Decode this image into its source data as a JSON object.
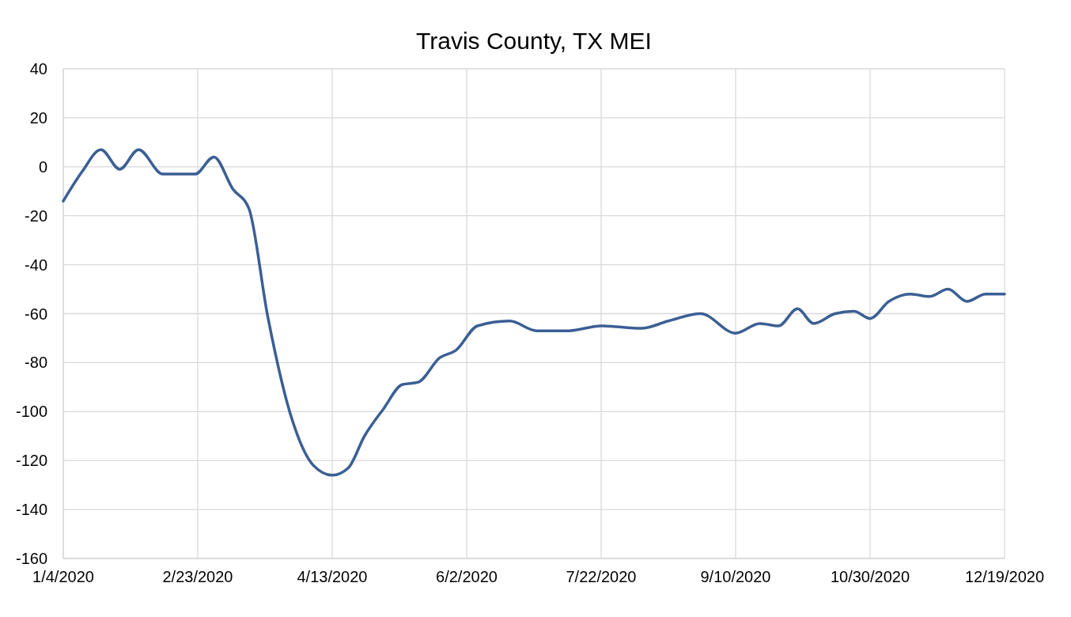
{
  "chart_data": {
    "type": "line",
    "title": "Travis County, TX MEI",
    "x": [
      "2020-01-04",
      "2020-01-11",
      "2020-01-18",
      "2020-01-25",
      "2020-02-01",
      "2020-02-10",
      "2020-02-16",
      "2020-02-22",
      "2020-02-29",
      "2020-03-07",
      "2020-03-13",
      "2020-03-20",
      "2020-03-29",
      "2020-04-06",
      "2020-04-13",
      "2020-04-19",
      "2020-04-25",
      "2020-05-02",
      "2020-05-09",
      "2020-05-15",
      "2020-05-23",
      "2020-05-29",
      "2020-06-06",
      "2020-06-18",
      "2020-06-28",
      "2020-07-10",
      "2020-07-22",
      "2020-08-06",
      "2020-08-16",
      "2020-08-28",
      "2020-09-10",
      "2020-09-19",
      "2020-09-26",
      "2020-10-03",
      "2020-10-09",
      "2020-10-17",
      "2020-10-24",
      "2020-10-30",
      "2020-11-06",
      "2020-11-14",
      "2020-11-21",
      "2020-11-28",
      "2020-12-05",
      "2020-12-12",
      "2020-12-19"
    ],
    "series": [
      {
        "color": "#3b5f94",
        "values": [
          -14,
          -2,
          7,
          -1,
          7,
          -3,
          -3,
          -3,
          4,
          -9,
          -17,
          -61,
          -103,
          -122,
          -126,
          -123,
          -110,
          -99,
          -89,
          -88,
          -78,
          -75,
          -65,
          -63,
          -67,
          -67,
          -65,
          -66,
          -63,
          -60,
          -68,
          -64,
          -65,
          -58,
          -64,
          -60,
          -59,
          -62,
          -55,
          -52,
          -53,
          -50,
          -55,
          -52,
          -52
        ]
      }
    ],
    "xlim": [
      "2020-01-04",
      "2020-12-19"
    ],
    "xticks": [
      {
        "value": "2020-01-04",
        "label": "1/4/2020"
      },
      {
        "value": "2020-02-23",
        "label": "2/23/2020"
      },
      {
        "value": "2020-04-13",
        "label": "4/13/2020"
      },
      {
        "value": "2020-06-02",
        "label": "6/2/2020"
      },
      {
        "value": "2020-07-22",
        "label": "7/22/2020"
      },
      {
        "value": "2020-09-10",
        "label": "9/10/2020"
      },
      {
        "value": "2020-10-30",
        "label": "10/30/2020"
      },
      {
        "value": "2020-12-19",
        "label": "12/19/2020"
      }
    ],
    "ylim": [
      -160,
      40
    ],
    "yticks": [
      -160,
      -140,
      -120,
      -100,
      -80,
      -60,
      -40,
      -20,
      0,
      20,
      40
    ],
    "grid": true,
    "marker": "none",
    "line_style": "solid"
  }
}
